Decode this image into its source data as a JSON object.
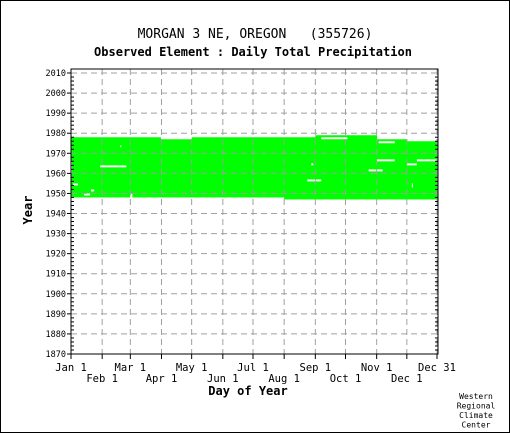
{
  "chart_data": {
    "type": "heatmap",
    "title": "MORGAN 3 NE, OREGON   (355726)",
    "subtitle": "Observed Element : Daily Total Precipitation",
    "xlabel": "Day of Year",
    "ylabel": "Year",
    "xlim": [
      1,
      366
    ],
    "ylim": [
      1870,
      2012
    ],
    "grid": true,
    "x_ticks_upper": [
      {
        "label": "Jan 1",
        "day": 1
      },
      {
        "label": "Mar 1",
        "day": 60
      },
      {
        "label": "May 1",
        "day": 121
      },
      {
        "label": "Jul 1",
        "day": 182
      },
      {
        "label": "Sep 1",
        "day": 244
      },
      {
        "label": "Nov 1",
        "day": 305
      },
      {
        "label": "Dec 31",
        "day": 365
      }
    ],
    "x_ticks_lower": [
      {
        "label": "Feb 1",
        "day": 32
      },
      {
        "label": "Apr 1",
        "day": 91
      },
      {
        "label": "Jun 1",
        "day": 152
      },
      {
        "label": "Aug 1",
        "day": 213
      },
      {
        "label": "Oct 1",
        "day": 274
      },
      {
        "label": "Dec 1",
        "day": 335
      }
    ],
    "y_ticks": [
      1870,
      1880,
      1890,
      1900,
      1910,
      1920,
      1930,
      1940,
      1950,
      1960,
      1970,
      1980,
      1990,
      2000,
      2010
    ],
    "data_color": "#00ff00",
    "coverage_segments": [
      {
        "from_day": 1,
        "to_day": 60,
        "from_year": 1948,
        "to_year": 1978
      },
      {
        "from_day": 60,
        "to_day": 90,
        "from_year": 1948,
        "to_year": 1978
      },
      {
        "from_day": 90,
        "to_day": 121,
        "from_year": 1948,
        "to_year": 1977
      },
      {
        "from_day": 121,
        "to_day": 213,
        "from_year": 1948,
        "to_year": 1978
      },
      {
        "from_day": 213,
        "to_day": 244,
        "from_year": 1947,
        "to_year": 1978
      },
      {
        "from_day": 244,
        "to_day": 305,
        "from_year": 1947,
        "to_year": 1979
      },
      {
        "from_day": 305,
        "to_day": 335,
        "from_year": 1947,
        "to_year": 1977
      },
      {
        "from_day": 335,
        "to_day": 366,
        "from_year": 1947,
        "to_year": 1976
      }
    ],
    "gaps": [
      {
        "from_day": 1,
        "to_day": 2,
        "from_year": 1960,
        "to_year": 1966
      },
      {
        "from_day": 3,
        "to_day": 8,
        "from_year": 1954,
        "to_year": 1955
      },
      {
        "from_day": 14,
        "to_day": 20,
        "from_year": 1949,
        "to_year": 1950
      },
      {
        "from_day": 21,
        "to_day": 24,
        "from_year": 1951,
        "to_year": 1952
      },
      {
        "from_day": 30,
        "to_day": 56,
        "from_year": 1963,
        "to_year": 1964
      },
      {
        "from_day": 50,
        "to_day": 51,
        "from_year": 1973,
        "to_year": 1974
      },
      {
        "from_day": 60,
        "to_day": 62,
        "from_year": 1948,
        "to_year": 1950
      },
      {
        "from_day": 236,
        "to_day": 250,
        "from_year": 1956,
        "to_year": 1957
      },
      {
        "from_day": 240,
        "to_day": 242,
        "from_year": 1964,
        "to_year": 1965
      },
      {
        "from_day": 250,
        "to_day": 276,
        "from_year": 1977,
        "to_year": 1978
      },
      {
        "from_day": 297,
        "to_day": 311,
        "from_year": 1961,
        "to_year": 1962
      },
      {
        "from_day": 305,
        "to_day": 323,
        "from_year": 1966,
        "to_year": 1967
      },
      {
        "from_day": 307,
        "to_day": 323,
        "from_year": 1975,
        "to_year": 1976
      },
      {
        "from_day": 335,
        "to_day": 345,
        "from_year": 1964,
        "to_year": 1965
      },
      {
        "from_day": 345,
        "to_day": 366,
        "from_year": 1966,
        "to_year": 1967
      },
      {
        "from_day": 340,
        "to_day": 341,
        "from_year": 1953,
        "to_year": 1955
      }
    ]
  },
  "credit": [
    "Western",
    "Regional",
    "Climate",
    "Center"
  ]
}
